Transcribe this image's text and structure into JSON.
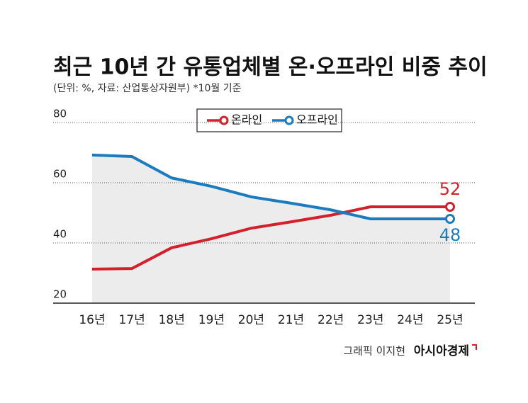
{
  "chart_data": {
    "type": "line",
    "title": "최근 10년 간 유통업체별 온·오프라인 비중 추이",
    "subtitle": "(단위: %, 자료: 산업통상자원부)  *10월 기준",
    "categories": [
      "16년",
      "17년",
      "18년",
      "19년",
      "20년",
      "21년",
      "22년",
      "23년",
      "24년",
      "25년"
    ],
    "series": [
      {
        "name": "온라인",
        "color": "#d4202c",
        "values": [
          31.3,
          31.5,
          38.4,
          41.4,
          44.9,
          47,
          49.2,
          52,
          52,
          52
        ]
      },
      {
        "name": "오프라인",
        "color": "#1b7bbf",
        "values": [
          69.2,
          68.7,
          61.6,
          58.8,
          55.3,
          53.2,
          51,
          48,
          48,
          48
        ]
      }
    ],
    "ylim": [
      20,
      80
    ],
    "yticks": [
      20,
      40,
      60,
      80
    ],
    "grid": true,
    "legend": "top",
    "area_color": "#ececec",
    "credit": "그래픽 이지현",
    "source_brand": "아시아경제"
  }
}
